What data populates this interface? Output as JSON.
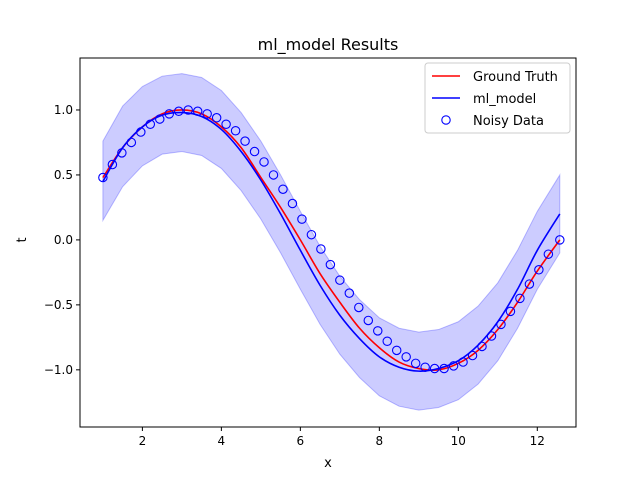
{
  "chart_data": {
    "type": "line",
    "title": "ml_model Results",
    "xlabel": "x",
    "ylabel": "t",
    "xlim": [
      0.42,
      12.98
    ],
    "ylim": [
      -1.44,
      1.4
    ],
    "xticks": [
      2,
      4,
      6,
      8,
      10,
      12
    ],
    "yticks": [
      -1.0,
      -0.5,
      0.0,
      0.5,
      1.0
    ],
    "xtick_labels": [
      "2",
      "4",
      "6",
      "8",
      "10",
      "12"
    ],
    "ytick_labels": [
      "−1.0",
      "−0.5",
      "0.0",
      "0.5",
      "1.0"
    ],
    "grid": false,
    "legend_position": "top-right",
    "series": [
      {
        "name": "Ground Truth",
        "kind": "line",
        "color": "#ff0000",
        "x": [
          1.0,
          1.5,
          2.0,
          2.5,
          3.0,
          3.5,
          4.0,
          4.5,
          5.0,
          5.5,
          6.0,
          6.5,
          7.0,
          7.5,
          8.0,
          8.5,
          9.0,
          9.5,
          10.0,
          10.5,
          11.0,
          11.5,
          12.0,
          12.57
        ],
        "y": [
          0.48,
          0.71,
          0.87,
          0.97,
          1.0,
          0.97,
          0.87,
          0.71,
          0.48,
          0.25,
          0.0,
          -0.26,
          -0.48,
          -0.68,
          -0.83,
          -0.94,
          -0.99,
          -1.0,
          -0.95,
          -0.85,
          -0.69,
          -0.48,
          -0.24,
          0.0
        ]
      },
      {
        "name": "ml_model",
        "kind": "line",
        "color": "#0000ff",
        "x": [
          1.0,
          1.5,
          2.0,
          2.5,
          3.0,
          3.5,
          4.0,
          4.5,
          5.0,
          5.5,
          6.0,
          6.5,
          7.0,
          7.5,
          8.0,
          8.5,
          9.0,
          9.5,
          10.0,
          10.5,
          11.0,
          11.5,
          12.0,
          12.57
        ],
        "y": [
          0.45,
          0.71,
          0.87,
          0.96,
          0.98,
          0.95,
          0.85,
          0.68,
          0.46,
          0.2,
          -0.08,
          -0.35,
          -0.58,
          -0.76,
          -0.9,
          -0.98,
          -1.01,
          -0.99,
          -0.93,
          -0.81,
          -0.63,
          -0.38,
          -0.08,
          0.2
        ]
      },
      {
        "name": "Noisy Data",
        "kind": "scatter",
        "color": "#0000ff",
        "x": [
          1.0,
          1.24,
          1.48,
          1.72,
          1.96,
          2.2,
          2.44,
          2.68,
          2.92,
          3.16,
          3.4,
          3.64,
          3.88,
          4.12,
          4.36,
          4.6,
          4.84,
          5.08,
          5.32,
          5.56,
          5.8,
          6.04,
          6.28,
          6.52,
          6.76,
          7.0,
          7.24,
          7.48,
          7.72,
          7.96,
          8.2,
          8.44,
          8.68,
          8.92,
          9.16,
          9.4,
          9.64,
          9.88,
          10.12,
          10.36,
          10.6,
          10.84,
          11.08,
          11.32,
          11.56,
          11.8,
          12.04,
          12.28,
          12.57
        ],
        "y": [
          0.48,
          0.58,
          0.67,
          0.75,
          0.83,
          0.89,
          0.93,
          0.97,
          0.99,
          1.0,
          0.99,
          0.97,
          0.94,
          0.89,
          0.84,
          0.76,
          0.68,
          0.6,
          0.5,
          0.39,
          0.28,
          0.16,
          0.04,
          -0.07,
          -0.19,
          -0.31,
          -0.41,
          -0.52,
          -0.62,
          -0.7,
          -0.78,
          -0.85,
          -0.9,
          -0.95,
          -0.98,
          -0.99,
          -0.99,
          -0.97,
          -0.94,
          -0.89,
          -0.82,
          -0.74,
          -0.65,
          -0.55,
          -0.45,
          -0.34,
          -0.23,
          -0.11,
          0.0
        ]
      }
    ],
    "band": {
      "color": "#0000ff",
      "opacity": 0.2,
      "x": [
        1.0,
        1.5,
        2.0,
        2.5,
        3.0,
        3.5,
        4.0,
        4.5,
        5.0,
        5.5,
        6.0,
        6.5,
        7.0,
        7.5,
        8.0,
        8.5,
        9.0,
        9.5,
        10.0,
        10.5,
        11.0,
        11.5,
        12.0,
        12.57
      ],
      "upper": [
        0.76,
        1.03,
        1.18,
        1.26,
        1.28,
        1.25,
        1.15,
        0.98,
        0.76,
        0.5,
        0.22,
        -0.05,
        -0.28,
        -0.46,
        -0.6,
        -0.68,
        -0.71,
        -0.69,
        -0.63,
        -0.51,
        -0.33,
        -0.08,
        0.22,
        0.5
      ],
      "lower": [
        0.15,
        0.41,
        0.57,
        0.66,
        0.68,
        0.65,
        0.55,
        0.38,
        0.16,
        -0.1,
        -0.38,
        -0.65,
        -0.88,
        -1.06,
        -1.2,
        -1.28,
        -1.31,
        -1.29,
        -1.23,
        -1.11,
        -0.93,
        -0.68,
        -0.38,
        -0.1
      ]
    }
  }
}
